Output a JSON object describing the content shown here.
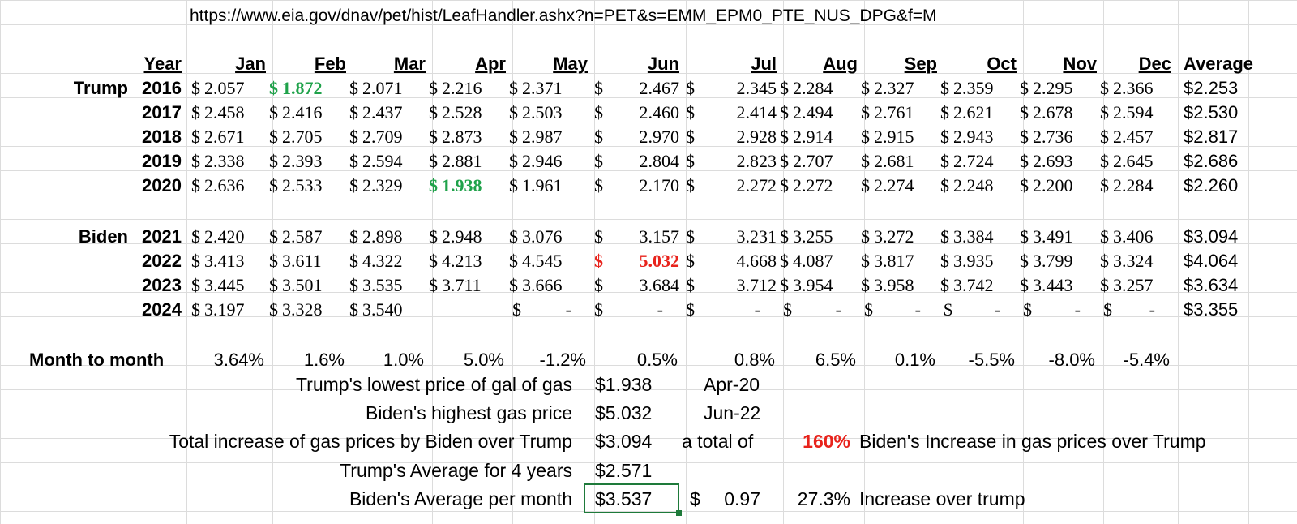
{
  "url": "https://www.eia.gov/dnav/pet/hist/LeafHandler.ashx?n=PET&s=EMM_EPM0_PTE_NUS_DPG&f=M",
  "header": {
    "year": "Year",
    "months": [
      "Jan",
      "Feb",
      "Mar",
      "Apr",
      "May",
      "Jun",
      "Jul",
      "Aug",
      "Sep",
      "Oct",
      "Nov",
      "Dec"
    ],
    "average": "Average"
  },
  "rows": [
    {
      "group": "Trump",
      "year": "2016",
      "cells": [
        "2.057",
        "1.872",
        "2.071",
        "2.216",
        "2.371",
        "2.467",
        "2.345",
        "2.284",
        "2.327",
        "2.359",
        "2.295",
        "2.366"
      ],
      "average": "$2.253"
    },
    {
      "group": "",
      "year": "2017",
      "cells": [
        "2.458",
        "2.416",
        "2.437",
        "2.528",
        "2.503",
        "2.460",
        "2.414",
        "2.494",
        "2.761",
        "2.621",
        "2.678",
        "2.594"
      ],
      "average": "$2.530"
    },
    {
      "group": "",
      "year": "2018",
      "cells": [
        "2.671",
        "2.705",
        "2.709",
        "2.873",
        "2.987",
        "2.970",
        "2.928",
        "2.914",
        "2.915",
        "2.943",
        "2.736",
        "2.457"
      ],
      "average": "$2.817"
    },
    {
      "group": "",
      "year": "2019",
      "cells": [
        "2.338",
        "2.393",
        "2.594",
        "2.881",
        "2.946",
        "2.804",
        "2.823",
        "2.707",
        "2.681",
        "2.724",
        "2.693",
        "2.645"
      ],
      "average": "$2.686"
    },
    {
      "group": "",
      "year": "2020",
      "cells": [
        "2.636",
        "2.533",
        "2.329",
        "1.938",
        "1.961",
        "2.170",
        "2.272",
        "2.272",
        "2.274",
        "2.248",
        "2.200",
        "2.284"
      ],
      "average": "$2.260"
    },
    {
      "group": "Biden",
      "year": "2021",
      "cells": [
        "2.420",
        "2.587",
        "2.898",
        "2.948",
        "3.076",
        "3.157",
        "3.231",
        "3.255",
        "3.272",
        "3.384",
        "3.491",
        "3.406"
      ],
      "average": "$3.094"
    },
    {
      "group": "",
      "year": "2022",
      "cells": [
        "3.413",
        "3.611",
        "4.322",
        "4.213",
        "4.545",
        "5.032",
        "4.668",
        "4.087",
        "3.817",
        "3.935",
        "3.799",
        "3.324"
      ],
      "average": "$4.064"
    },
    {
      "group": "",
      "year": "2023",
      "cells": [
        "3.445",
        "3.501",
        "3.535",
        "3.711",
        "3.666",
        "3.684",
        "3.712",
        "3.954",
        "3.958",
        "3.742",
        "3.443",
        "3.257"
      ],
      "average": "$3.634"
    },
    {
      "group": "",
      "year": "2024",
      "cells": [
        "3.197",
        "3.328",
        "3.540",
        "",
        "-",
        "-",
        "-",
        "-",
        "-",
        "-",
        "-",
        "-"
      ],
      "average": "$3.355"
    }
  ],
  "currency_symbol": "$",
  "month_to_month": {
    "label": "Month to month",
    "values": [
      "3.64%",
      "1.6%",
      "1.0%",
      "5.0%",
      "-1.2%",
      "0.5%",
      "0.8%",
      "6.5%",
      "0.1%",
      "-5.5%",
      "-8.0%",
      "-5.4%"
    ]
  },
  "summary": {
    "trump_lowest_label": "Trump's lowest price of gal of gas",
    "trump_lowest_value": "$1.938",
    "trump_lowest_date": "Apr-20",
    "biden_highest_label": "Biden's highest gas price",
    "biden_highest_value": "$5.032",
    "biden_highest_date": "Jun-22",
    "total_increase_label": "Total increase of gas prices by Biden over Trump",
    "total_increase_value": "$3.094",
    "total_of_label": "a total of",
    "total_pct": "160%",
    "total_pct_label": "Biden's Increase in gas prices over Trump",
    "trump_avg_label": "Trump's Average for 4 years",
    "trump_avg_value": "$2.571",
    "biden_avg_label": "Biden's Average per month",
    "biden_avg_value": "$3.537",
    "diff_symbol": "$",
    "diff_value": "0.97",
    "diff_pct": "27.3%",
    "diff_label": "Increase over trump"
  },
  "colors": {
    "low": "#1fa24a",
    "high": "#e8231c",
    "selection": "#1e7a3a",
    "grid": "#dcdcdc"
  }
}
